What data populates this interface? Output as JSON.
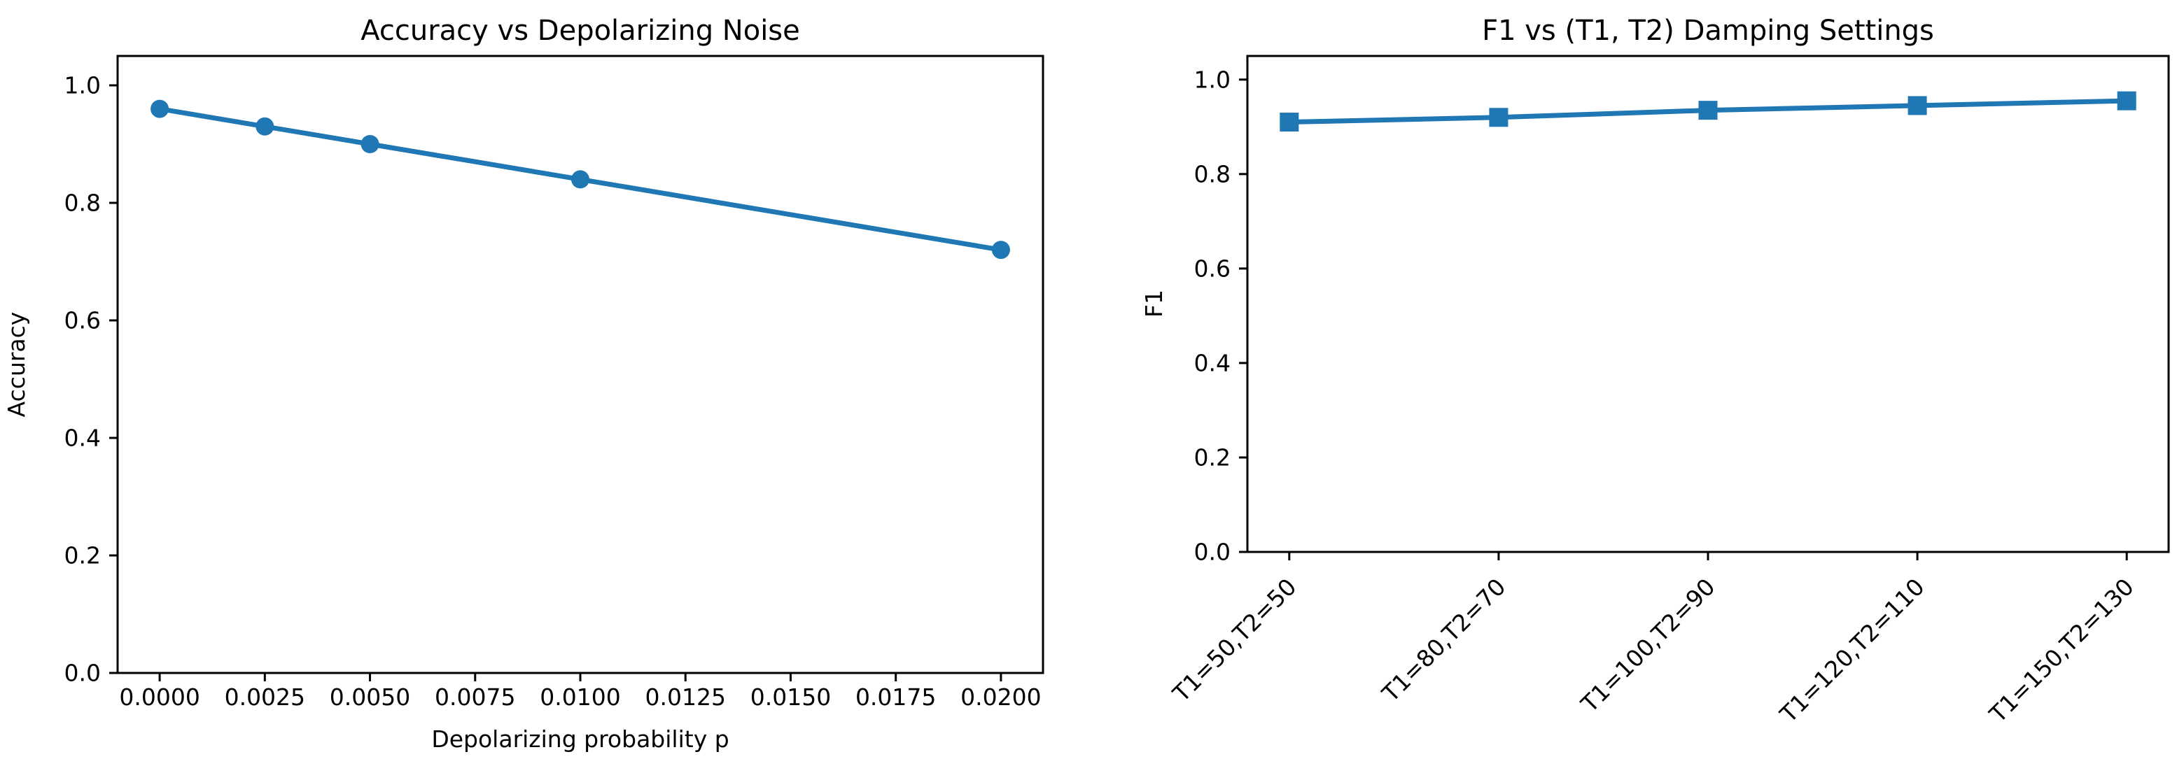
{
  "figure": {
    "background": "#ffffff",
    "text_color": "#000000",
    "accent_color": "#1f77b4"
  },
  "chart_data": [
    {
      "type": "line",
      "title": "Accuracy vs Depolarizing Noise",
      "xlabel": "Depolarizing probability p",
      "ylabel": "Accuracy",
      "grid": false,
      "legend": null,
      "color": "#1f77b4",
      "marker": "circle",
      "x": [
        0.0,
        0.0025,
        0.005,
        0.01,
        0.02
      ],
      "y": [
        0.96,
        0.93,
        0.9,
        0.84,
        0.72
      ],
      "xlim": [
        -0.001,
        0.021
      ],
      "ylim": [
        0,
        1.05
      ],
      "xticks": {
        "values": [
          0.0,
          0.0025,
          0.005,
          0.0075,
          0.01,
          0.0125,
          0.015,
          0.0175,
          0.02
        ],
        "labels": [
          "0.0000",
          "0.0025",
          "0.0050",
          "0.0075",
          "0.0100",
          "0.0125",
          "0.0150",
          "0.0175",
          "0.0200"
        ]
      },
      "yticks": {
        "values": [
          0.0,
          0.2,
          0.4,
          0.6,
          0.8,
          1.0
        ],
        "labels": [
          "0.0",
          "0.2",
          "0.4",
          "0.6",
          "0.8",
          "1.0"
        ]
      }
    },
    {
      "type": "line",
      "title": "F1 vs (T1, T2) Damping Settings",
      "xlabel": "",
      "ylabel": "F1",
      "grid": false,
      "legend": null,
      "color": "#1f77b4",
      "marker": "square",
      "categories": [
        "T1=50,T2=50",
        "T1=80,T2=70",
        "T1=100,T2=90",
        "T1=120,T2=110",
        "T1=150,T2=130"
      ],
      "values": [
        0.91,
        0.92,
        0.935,
        0.945,
        0.955
      ],
      "xtick_rotation_deg": 45,
      "ylim": [
        0,
        1.05
      ],
      "yticks": {
        "values": [
          0.0,
          0.2,
          0.4,
          0.6,
          0.8,
          1.0
        ],
        "labels": [
          "0.0",
          "0.2",
          "0.4",
          "0.6",
          "0.8",
          "1.0"
        ]
      }
    }
  ]
}
